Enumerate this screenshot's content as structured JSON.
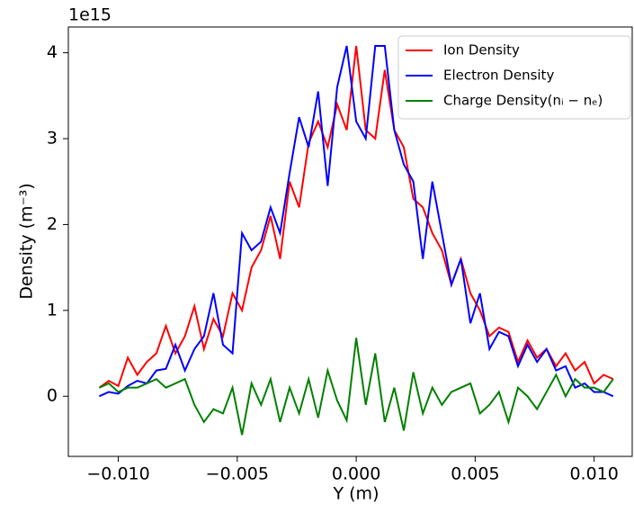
{
  "chart_data": {
    "type": "line",
    "offset_text": "1e15",
    "xlabel": "Y (m)",
    "ylabel": "Density (m⁻³)",
    "x": [
      -0.0108,
      -0.0104,
      -0.01,
      -0.0096,
      -0.0092,
      -0.0088,
      -0.0084,
      -0.008,
      -0.0076,
      -0.0072,
      -0.0068,
      -0.0064,
      -0.006,
      -0.0056,
      -0.0052,
      -0.0048,
      -0.0044,
      -0.004,
      -0.0036,
      -0.0032,
      -0.0028,
      -0.0024,
      -0.002,
      -0.0016,
      -0.0012,
      -0.0008,
      -0.0004,
      0,
      0.0004,
      0.0008,
      0.0012,
      0.0016,
      0.002,
      0.0024,
      0.0028,
      0.0032,
      0.0036,
      0.004,
      0.0044,
      0.0048,
      0.0052,
      0.0056,
      0.006,
      0.0064,
      0.0068,
      0.0072,
      0.0076,
      0.008,
      0.0084,
      0.0088,
      0.0092,
      0.0096,
      0.01,
      0.0104,
      0.0108
    ],
    "series": [
      {
        "name": "Ion Density",
        "color": "#ff0000",
        "values": [
          0.1,
          0.18,
          0.12,
          0.45,
          0.25,
          0.4,
          0.5,
          0.82,
          0.5,
          0.7,
          1.05,
          0.55,
          0.9,
          0.7,
          1.2,
          1.0,
          1.5,
          1.7,
          2.1,
          1.6,
          2.5,
          2.2,
          2.95,
          3.2,
          2.9,
          3.4,
          3.1,
          4.08,
          3.1,
          3.0,
          3.8,
          3.1,
          2.9,
          2.3,
          2.2,
          1.9,
          1.7,
          1.3,
          1.6,
          1.2,
          1.0,
          0.7,
          0.8,
          0.75,
          0.4,
          0.65,
          0.45,
          0.55,
          0.35,
          0.5,
          0.3,
          0.4,
          0.15,
          0.25,
          0.2
        ]
      },
      {
        "name": "Electron Density",
        "color": "#0000ff",
        "values": [
          0,
          0.05,
          0.03,
          0.12,
          0.18,
          0.15,
          0.3,
          0.32,
          0.6,
          0.3,
          0.55,
          0.7,
          1.2,
          0.6,
          0.5,
          1.9,
          1.7,
          1.8,
          2.2,
          1.9,
          2.6,
          3.25,
          2.9,
          3.55,
          2.45,
          3.6,
          4.08,
          3.2,
          3.0,
          4.08,
          4.08,
          3.1,
          2.7,
          2.5,
          1.6,
          2.5,
          1.9,
          1.3,
          1.6,
          0.85,
          1.2,
          0.55,
          0.75,
          0.7,
          0.35,
          0.6,
          0.4,
          0.55,
          0.3,
          0.35,
          0.1,
          0.15,
          0.05,
          0.05,
          0.0
        ]
      },
      {
        "name": "Charge Density(nᵢ − nₑ)",
        "color": "#008000",
        "values": [
          0.1,
          0.15,
          0.05,
          0.1,
          0.1,
          0.15,
          0.2,
          0.1,
          0.15,
          0.2,
          -0.1,
          -0.3,
          -0.15,
          -0.2,
          0.1,
          -0.45,
          0.15,
          -0.1,
          0.2,
          -0.3,
          0.1,
          -0.2,
          0.2,
          -0.25,
          0.3,
          -0.05,
          -0.28,
          0.68,
          -0.1,
          0.5,
          -0.3,
          0.1,
          -0.4,
          0.28,
          -0.2,
          0.1,
          -0.1,
          0.05,
          0.1,
          0.15,
          -0.2,
          -0.1,
          0.05,
          -0.3,
          0.1,
          0.0,
          -0.15,
          0.05,
          0.25,
          0.0,
          0.2,
          0.1,
          0.1,
          0.05,
          0.2
        ]
      }
    ],
    "xlim": [
      -0.0121,
      0.0116
    ],
    "ylim": [
      -0.7,
      4.3
    ],
    "xticks": [
      {
        "value": -0.01,
        "label": "−0.010"
      },
      {
        "value": -0.005,
        "label": "−0.005"
      },
      {
        "value": 0,
        "label": "0.000"
      },
      {
        "value": 0.005,
        "label": "0.005"
      },
      {
        "value": 0.01,
        "label": "0.010"
      }
    ],
    "yticks": [
      0,
      1,
      2,
      3,
      4
    ],
    "legend": "upper right"
  }
}
